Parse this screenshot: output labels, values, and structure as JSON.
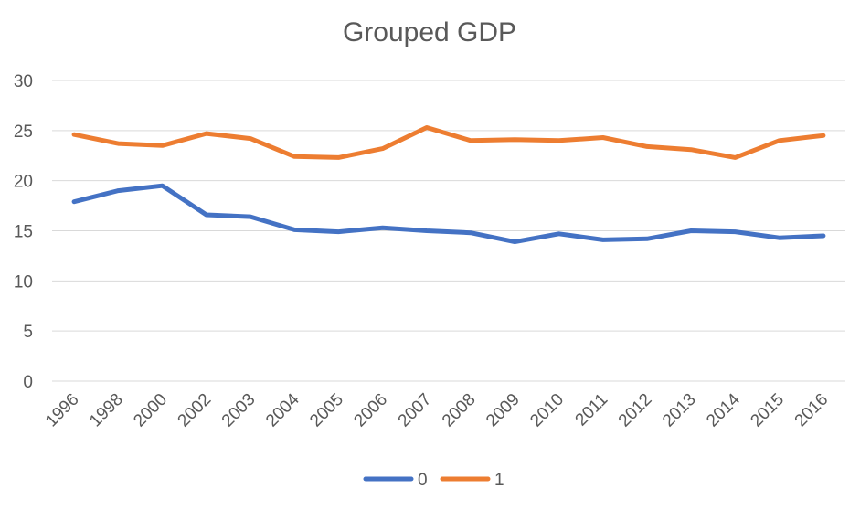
{
  "chart_data": {
    "type": "line",
    "title": "Grouped GDP",
    "xlabel": "",
    "ylabel": "",
    "x": [
      "1996",
      "1998",
      "2000",
      "2002",
      "2003",
      "2004",
      "2005",
      "2006",
      "2007",
      "2008",
      "2009",
      "2010",
      "2011",
      "2012",
      "2013",
      "2014",
      "2015",
      "2016"
    ],
    "ylim": [
      0,
      30
    ],
    "yticks": [
      "0",
      "5",
      "10",
      "15",
      "20",
      "25",
      "30"
    ],
    "grid": true,
    "legend_position": "bottom",
    "series": [
      {
        "name": "0",
        "color": "#4472C4",
        "values": [
          17.9,
          19.0,
          19.5,
          16.6,
          16.4,
          15.1,
          14.9,
          15.3,
          15.0,
          14.8,
          13.9,
          14.7,
          14.1,
          14.2,
          15.0,
          14.9,
          14.3,
          14.5
        ]
      },
      {
        "name": "1",
        "color": "#ED7D31",
        "values": [
          24.6,
          23.7,
          23.5,
          24.7,
          24.2,
          22.4,
          22.3,
          23.2,
          25.3,
          24.0,
          24.1,
          24.0,
          24.3,
          23.4,
          23.1,
          22.3,
          24.0,
          24.5
        ]
      }
    ]
  }
}
